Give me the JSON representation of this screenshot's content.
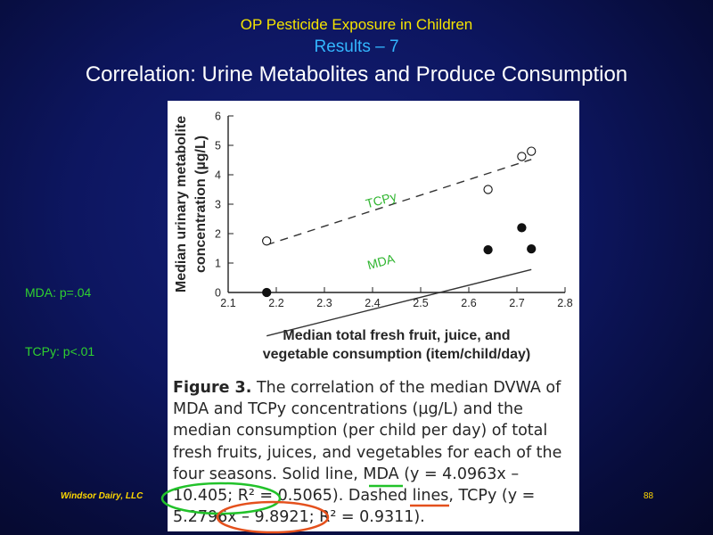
{
  "slide": {
    "title_line1": "OP Pesticide Exposure in Children",
    "title_line2": "Results – 7",
    "title_line3": "Correlation: Urine Metabolites and Produce Consumption",
    "note_mda": "MDA: p=.04",
    "note_tcpy": "TCPy: p<.01",
    "footer": "Windsor Dairy, LLC",
    "page_number": "88"
  },
  "figure": {
    "caption_label": "Figure 3.",
    "caption_text": "The correlation of the median DVWA of MDA and TCPy concentrations (µg/L) and the median consumption (per child per day) of total fresh fruits, juices, and vegetables for each of the four seasons. Solid line, MDA (y = 4.0963x – 10.405; R² = 0.5065). Dashed lines, TCPy (y = 5.2796x – 9.8921; R² = 0.9311)."
  },
  "colors": {
    "background": "#0d1660",
    "title_yellow": "#f5e400",
    "subtitle_blue": "#33b6ff",
    "note_green": "#2fd12f",
    "highlight_green": "#22c22a",
    "highlight_red": "#e4501c"
  },
  "chart_data": {
    "type": "scatter",
    "title": "",
    "xlabel": "Median total fresh fruit, juice, and vegetable consumption (item/child/day)",
    "ylabel": "Median urinary metabolite concentration (µg/L)",
    "xlim": [
      2.1,
      2.8
    ],
    "ylim": [
      0,
      6
    ],
    "x_ticks": [
      2.1,
      2.2,
      2.3,
      2.4,
      2.5,
      2.6,
      2.7,
      2.8
    ],
    "y_ticks": [
      0,
      1,
      2,
      3,
      4,
      5,
      6
    ],
    "grid": false,
    "series": [
      {
        "name": "TCPy",
        "marker": "open-circle",
        "points": [
          [
            2.18,
            1.75
          ],
          [
            2.64,
            3.5
          ],
          [
            2.71,
            4.62
          ],
          [
            2.73,
            4.8
          ]
        ],
        "fit": {
          "slope": 5.2796,
          "intercept": -9.8921,
          "x_range": [
            2.18,
            2.73
          ],
          "style": "dashed"
        }
      },
      {
        "name": "MDA",
        "marker": "filled-circle",
        "points": [
          [
            2.18,
            0.0
          ],
          [
            2.64,
            1.45
          ],
          [
            2.71,
            2.2
          ],
          [
            2.73,
            1.48
          ]
        ],
        "fit": {
          "slope": 4.0963,
          "intercept": -10.405,
          "x_range": [
            2.18,
            2.73
          ],
          "style": "solid"
        }
      }
    ],
    "annotations": [
      {
        "text": "TCPy",
        "x": 2.42,
        "y": 3.0,
        "color": "#2fb52f"
      },
      {
        "text": "MDA",
        "x": 2.42,
        "y": 0.9,
        "color": "#2fb52f"
      }
    ]
  }
}
